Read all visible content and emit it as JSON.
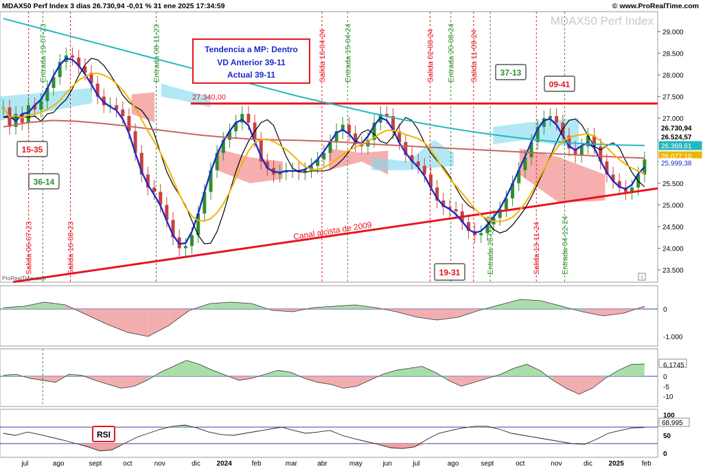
{
  "header": {
    "title": "MDAX50 Perf Index 3 dias 26.730,94 -0,01 % 31 ene 2025 17:34:59",
    "site": "© www.ProRealTime.com",
    "watermark": "MDAX50 Perf Index",
    "attribution": "ProRealTime.com"
  },
  "colors": {
    "resistance": "#e8141e",
    "trend_channel": "#e8141e",
    "price_line": "#1a2bc8",
    "ma_teal": "#22b8bf",
    "ma_brown": "#c86464",
    "ma_gold": "#f0b400",
    "black_line": "#000000",
    "cloud_blue": "#7fd9f0",
    "cloud_red": "#f07878",
    "green_bar": "#2f8f2f",
    "red_bar": "#c84040"
  },
  "annotations": {
    "info_box": [
      "Tendencia a MP: Dentro",
      "VD Anterior 39-11",
      "Actual 39-11"
    ],
    "resistance_label": "27.340,00",
    "channel_label": "Canal alcista de 2009",
    "boxes": [
      {
        "text": "15-35",
        "color": "red"
      },
      {
        "text": "36-14",
        "color": "green"
      },
      {
        "text": "37-13",
        "color": "green"
      },
      {
        "text": "09-41",
        "color": "red"
      },
      {
        "text": "19-31",
        "color": "red"
      }
    ],
    "rsi_label": "RSI"
  },
  "chart_data": {
    "type": "line",
    "title": "MDAX50 Perf Index 3 dias",
    "x_axis_labels": [
      "jul",
      "ago",
      "sept",
      "oct",
      "nov",
      "dic",
      "2024",
      "feb",
      "mar",
      "abr",
      "may",
      "jun",
      "jul",
      "ago",
      "sept",
      "oct",
      "nov",
      "dic",
      "2025",
      "feb"
    ],
    "y_ticks": [
      "29.000",
      "28.500",
      "28.000",
      "27.500",
      "27.000",
      "26.500",
      "26.000",
      "25.500",
      "25.000",
      "24.500",
      "24.000",
      "23.500"
    ],
    "ylim": [
      23250,
      29300
    ],
    "price_value_labels": [
      {
        "text": "26.730,94",
        "value": 26730.94,
        "bg": "#ffffff",
        "fg": "#000000",
        "bold": true
      },
      {
        "text": "26.524,57",
        "value": 26524.57,
        "bg": "#ffffff",
        "fg": "#000000",
        "bold": true
      },
      {
        "text": "26.369,61",
        "value": 26369.61,
        "bg": "#22b8bf",
        "fg": "#ffffff",
        "bold": false
      },
      {
        "text": "26.077,10",
        "value": 26077.1,
        "bg": "#f0b400",
        "fg": "#ffffff",
        "bold": false
      },
      {
        "text": "25.999,38",
        "value": 25999.38,
        "bg": "#ffffff",
        "fg": "#1a2bc8",
        "bold": false
      }
    ],
    "signals": [
      {
        "label": "Salida 06-07-23",
        "x": 0.0435,
        "type": "exit"
      },
      {
        "label": "Entrada 19-07-23",
        "x": 0.065,
        "type": "entry"
      },
      {
        "label": "Salida 16-08-23",
        "x": 0.107,
        "type": "exit"
      },
      {
        "label": "Entrada 08-11-23",
        "x": 0.2375,
        "type": "entry"
      },
      {
        "label": "Salida 16-04-24",
        "x": 0.4895,
        "type": "exit"
      },
      {
        "label": "Entrada 15-04-24",
        "x": 0.5285,
        "type": "entry"
      },
      {
        "label": "Salida 02-08-24",
        "x": 0.654,
        "type": "exit"
      },
      {
        "label": "Entrada 20-08-24",
        "x": 0.6855,
        "type": "entry"
      },
      {
        "label": "Salida 11-09-24",
        "x": 0.72,
        "type": "exit"
      },
      {
        "label": "Entrada 26-09-24",
        "x": 0.7455,
        "type": "entry"
      },
      {
        "label": "Salida 13-11-24",
        "x": 0.8155,
        "type": "exit"
      },
      {
        "label": "Entrada 04-12-24",
        "x": 0.8585,
        "type": "entry"
      }
    ],
    "series": [
      {
        "name": "Precio",
        "values": [
          27250,
          26800,
          27100,
          26900,
          27300,
          27200,
          27400,
          27700,
          27950,
          28300,
          28450,
          28400,
          28200,
          28050,
          27800,
          27500,
          27300,
          27300,
          27200,
          27050,
          26700,
          26200,
          25700,
          25400,
          25300,
          25000,
          24650,
          24250,
          24000,
          24050,
          24300,
          24800,
          25300,
          25800,
          26200,
          26500,
          26700,
          26900,
          27100,
          26900,
          26500,
          26000,
          25850,
          25700,
          25750,
          25800,
          25800,
          25750,
          25800,
          25900,
          26050,
          26200,
          26450,
          26700,
          26850,
          26650,
          26400,
          26350,
          26500,
          26900,
          27100,
          27050,
          26700,
          26450,
          26150,
          26000,
          25900,
          25700,
          25400,
          25100,
          24950,
          24900,
          24850,
          24600,
          24400,
          24300,
          24350,
          24550,
          24700,
          24900,
          25150,
          25500,
          25800,
          26100,
          26450,
          26800,
          27000,
          27050,
          26900,
          26600,
          26300,
          26150,
          26350,
          26600,
          26350,
          26000,
          25700,
          25550,
          25400,
          25300,
          25400,
          25700,
          26050
        ]
      },
      {
        "name": "Media 200",
        "values": [
          29300,
          29150,
          29000,
          28850,
          28700,
          28550,
          28400,
          28250,
          28100,
          27950,
          27800,
          27650,
          27500,
          27370,
          27240,
          27110,
          26990,
          26880,
          26780,
          26690,
          26610,
          26540,
          26480,
          26430,
          26400,
          26380,
          26370
        ]
      },
      {
        "name": "Media 100",
        "values": [
          26800,
          26900,
          26950,
          26930,
          26880,
          26820,
          26750,
          26680,
          26610,
          26560,
          26520,
          26500,
          26490,
          26470,
          26440,
          26400,
          26370,
          26340,
          26310,
          26280,
          26250,
          26220,
          26190,
          26160,
          26130,
          26100,
          26080
        ]
      }
    ]
  },
  "indicators": {
    "macd": {
      "ticks": [
        "0",
        "-1.000"
      ],
      "values": [
        0.05,
        0.1,
        0.25,
        0.15,
        -0.2,
        -0.55,
        -0.85,
        -1.0,
        -0.6,
        -0.05,
        0.2,
        0.25,
        0.2,
        -0.05,
        -0.1,
        0.05,
        0.1,
        0.15,
        0.05,
        -0.1,
        -0.3,
        -0.4,
        -0.3,
        -0.05,
        0.15,
        0.35,
        0.3,
        0.1,
        -0.1,
        -0.25,
        -0.15,
        0.1
      ]
    },
    "momentum": {
      "ticks": [
        "6,1745",
        "0",
        "-5",
        "-10"
      ],
      "last": "6,1745",
      "values": [
        0.5,
        1,
        -1,
        -2,
        -3,
        1,
        0.5,
        -2,
        -4,
        -6,
        -5,
        -2,
        2,
        5,
        8,
        6,
        3,
        0.5,
        -2,
        -1,
        1,
        3,
        2,
        -1,
        -3,
        -4,
        -6,
        -5,
        -2,
        1,
        3,
        4,
        5,
        2,
        -2,
        -5,
        -3,
        -1,
        1,
        4,
        6,
        3,
        -2,
        -6,
        -9,
        -6,
        -1,
        3,
        6,
        6.17
      ]
    },
    "rsi": {
      "ticks": [
        "100",
        "50",
        "0"
      ],
      "last": "68,995",
      "values": [
        55,
        50,
        58,
        52,
        45,
        38,
        30,
        22,
        12,
        15,
        30,
        45,
        55,
        65,
        72,
        75,
        68,
        58,
        52,
        50,
        55,
        60,
        65,
        70,
        62,
        55,
        58,
        62,
        50,
        42,
        35,
        28,
        20,
        18,
        22,
        40,
        55,
        62,
        68,
        72,
        72,
        65,
        55,
        50,
        45,
        40,
        35,
        30,
        28,
        40,
        55,
        62,
        68,
        69
      ]
    }
  }
}
